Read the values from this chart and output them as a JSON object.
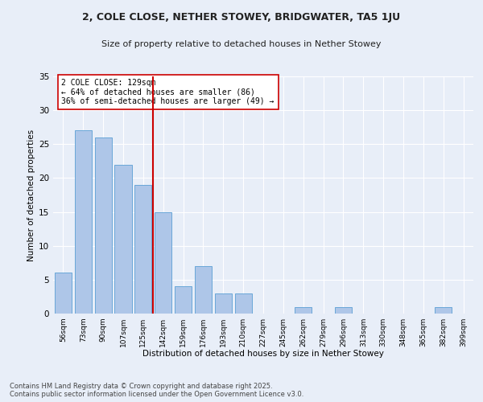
{
  "title1": "2, COLE CLOSE, NETHER STOWEY, BRIDGWATER, TA5 1JU",
  "title2": "Size of property relative to detached houses in Nether Stowey",
  "xlabel": "Distribution of detached houses by size in Nether Stowey",
  "ylabel": "Number of detached properties",
  "bar_labels": [
    "56sqm",
    "73sqm",
    "90sqm",
    "107sqm",
    "125sqm",
    "142sqm",
    "159sqm",
    "176sqm",
    "193sqm",
    "210sqm",
    "227sqm",
    "245sqm",
    "262sqm",
    "279sqm",
    "296sqm",
    "313sqm",
    "330sqm",
    "348sqm",
    "365sqm",
    "382sqm",
    "399sqm"
  ],
  "bar_values": [
    6,
    27,
    26,
    22,
    19,
    15,
    4,
    7,
    3,
    3,
    0,
    0,
    1,
    0,
    1,
    0,
    0,
    0,
    0,
    1,
    0
  ],
  "bar_color": "#aec6e8",
  "bar_edge_color": "#5a9fd4",
  "vline_x": 4.5,
  "vline_color": "#cc0000",
  "annotation_text": "2 COLE CLOSE: 129sqm\n← 64% of detached houses are smaller (86)\n36% of semi-detached houses are larger (49) →",
  "annotation_box_color": "#ffffff",
  "annotation_box_edge": "#cc0000",
  "bg_color": "#e8eef8",
  "plot_bg_color": "#e8eef8",
  "footnote": "Contains HM Land Registry data © Crown copyright and database right 2025.\nContains public sector information licensed under the Open Government Licence v3.0.",
  "ylim": [
    0,
    35
  ],
  "yticks": [
    0,
    5,
    10,
    15,
    20,
    25,
    30,
    35
  ]
}
